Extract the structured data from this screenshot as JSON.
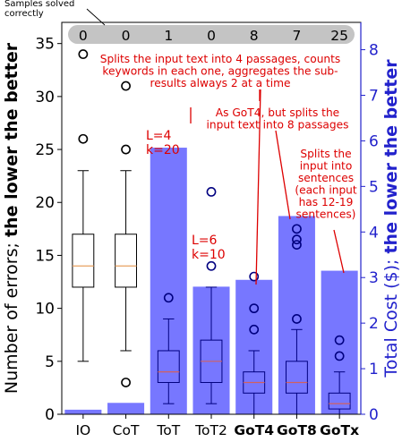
{
  "chart_data": {
    "type": "bar+boxplot",
    "categories": [
      "IO",
      "CoT",
      "ToT",
      "ToT2",
      "GoT4",
      "GoT8",
      "GoTx"
    ],
    "bold_categories": [
      "GoT4",
      "GoT8",
      "GoTx"
    ],
    "samples_solved_label": "Samples solved\ncorrectly",
    "samples_solved": [
      0,
      0,
      1,
      0,
      8,
      7,
      25
    ],
    "ylabel_left_normal": "Number of errors; ",
    "ylabel_left_bold": "the lower the better",
    "ylim_left": [
      0,
      37
    ],
    "yticks_left": [
      0,
      5,
      10,
      15,
      20,
      25,
      30,
      35
    ],
    "ylabel_right_normal": "Total Cost ($); ",
    "ylabel_right_bold": "the lower the better",
    "ylim_right": [
      0,
      8.6
    ],
    "yticks_right": [
      0,
      1,
      2,
      3,
      4,
      5,
      6,
      7,
      8
    ],
    "colors": {
      "bar": "#7777ff",
      "box_black": "#000000",
      "box_blue": "#000080",
      "median": "#e8a060",
      "median_blue": "#d06060",
      "annotation": "#dd0000",
      "right_axis": "#2222cc",
      "solved_band": "#c4c4c4"
    },
    "cost": [
      0.1,
      0.25,
      5.85,
      2.8,
      2.95,
      4.35,
      3.15
    ],
    "boxes": [
      {
        "whislo": 5,
        "q1": 12,
        "med": 14,
        "q3": 17,
        "whishi": 23,
        "fliers": [
          26,
          34
        ],
        "style": "black"
      },
      {
        "whislo": 6,
        "q1": 12,
        "med": 14,
        "q3": 17,
        "whishi": 23,
        "fliers": [
          3,
          25,
          31
        ],
        "style": "black"
      },
      {
        "whislo": 1,
        "q1": 3,
        "med": 4,
        "q3": 6,
        "whishi": 9,
        "fliers": [
          11
        ],
        "style": "blue"
      },
      {
        "whislo": 1,
        "q1": 3,
        "med": 5,
        "q3": 7,
        "whishi": 12,
        "fliers": [
          14,
          21
        ],
        "style": "blue"
      },
      {
        "whislo": 0,
        "q1": 2,
        "med": 3,
        "q3": 4,
        "whishi": 6,
        "fliers": [
          8,
          10,
          13
        ],
        "style": "blue"
      },
      {
        "whislo": 0,
        "q1": 2,
        "med": 3,
        "q3": 5,
        "whishi": 8,
        "fliers": [
          9,
          16,
          16.5,
          17.5
        ],
        "style": "blue"
      },
      {
        "whislo": 0,
        "q1": 0.5,
        "med": 1,
        "q3": 2,
        "whishi": 4,
        "fliers": [
          5.5,
          7
        ],
        "style": "blue"
      }
    ],
    "annotations": [
      {
        "text": "Splits the input text into 4 passages, counts\nkeywords in each one, aggregates the sub-\nresults always 2 at a time"
      },
      {
        "text": "As GoT4, but splits the\ninput text into 8 passages"
      },
      {
        "text": "Splits the\ninput into\nsentences\n(each input\nhas 12-19\nsentences)"
      },
      {
        "text": "L=4\nk=20"
      },
      {
        "text": "L=6\nk=10"
      }
    ]
  }
}
